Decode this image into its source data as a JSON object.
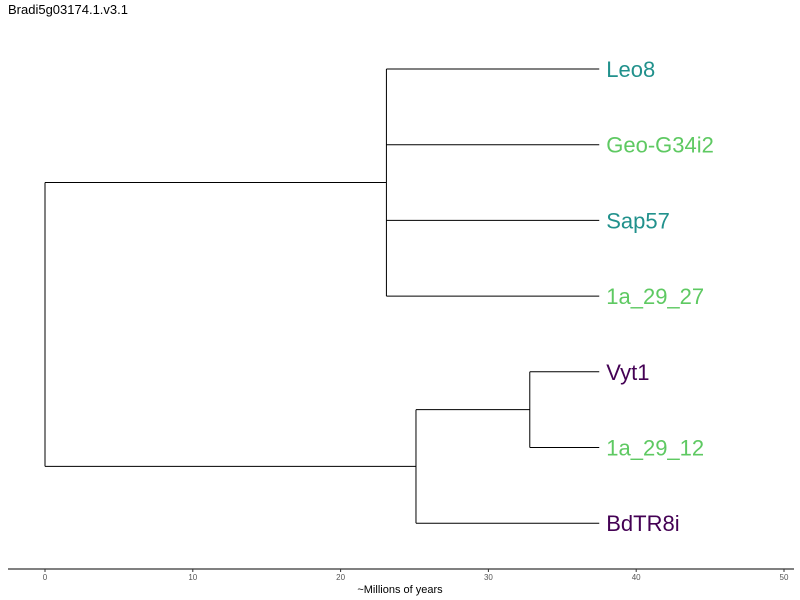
{
  "title": "Bradi5g03174.1.v3.1",
  "axis": {
    "label": "~Millions of years",
    "range": [
      0,
      50
    ],
    "ticks": [
      0,
      10,
      20,
      30,
      40,
      50
    ]
  },
  "colors": {
    "teal": "#21918c",
    "green": "#5ec962",
    "purple": "#440154"
  },
  "tree": {
    "nodes": [
      {
        "id": "root",
        "age": 0,
        "parent": null
      },
      {
        "id": "n1",
        "age": 23.1,
        "parent": "root"
      },
      {
        "id": "n2",
        "age": 25.1,
        "parent": "root"
      },
      {
        "id": "n3",
        "age": 32.8,
        "parent": "n2"
      }
    ],
    "tips": [
      {
        "name": "Leo8",
        "parent": "n1",
        "color": "#21918c"
      },
      {
        "name": "Geo-G34i2",
        "parent": "n1",
        "color": "#5ec962"
      },
      {
        "name": "Sap57",
        "parent": "n1",
        "color": "#21918c"
      },
      {
        "name": "1a_29_27",
        "parent": "n1",
        "color": "#5ec962"
      },
      {
        "name": "Vyt1",
        "parent": "n3",
        "color": "#440154"
      },
      {
        "name": "1a_29_12",
        "parent": "n3",
        "color": "#5ec962"
      },
      {
        "name": "BdTR8i",
        "parent": "n2",
        "color": "#440154"
      }
    ],
    "tip_age": 37.5
  }
}
